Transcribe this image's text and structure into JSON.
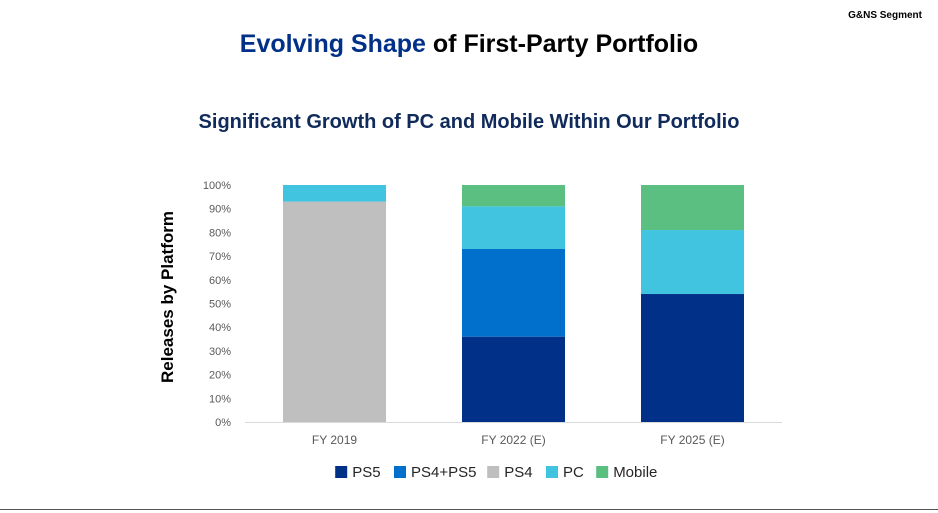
{
  "header": {
    "segment_tag": "G&NS Segment",
    "title_accent": "Evolving Shape",
    "title_rest": " of First-Party Portfolio",
    "subtitle": "Significant Growth of PC and Mobile Within Our Portfolio"
  },
  "chart_data": {
    "type": "bar",
    "stacked": true,
    "ylabel": "Releases by Platform",
    "xlabel": "",
    "ylim": [
      0,
      100
    ],
    "yticks": [
      "0%",
      "10%",
      "20%",
      "30%",
      "40%",
      "50%",
      "60%",
      "70%",
      "80%",
      "90%",
      "100%"
    ],
    "categories": [
      "FY 2019",
      "FY 2022 (E)",
      "FY 2025 (E)"
    ],
    "series": [
      {
        "name": "PS5",
        "color": "#003087",
        "values": [
          0,
          36,
          54
        ]
      },
      {
        "name": "PS4+PS5",
        "color": "#0070cc",
        "values": [
          0,
          37,
          0
        ]
      },
      {
        "name": "PS4",
        "color": "#bfbfbf",
        "values": [
          93,
          0,
          0
        ]
      },
      {
        "name": "PC",
        "color": "#40c4e0",
        "values": [
          7,
          18,
          27
        ]
      },
      {
        "name": "Mobile",
        "color": "#5bbf82",
        "values": [
          0,
          9,
          19
        ]
      }
    ],
    "legend_position": "bottom",
    "grid": false
  }
}
